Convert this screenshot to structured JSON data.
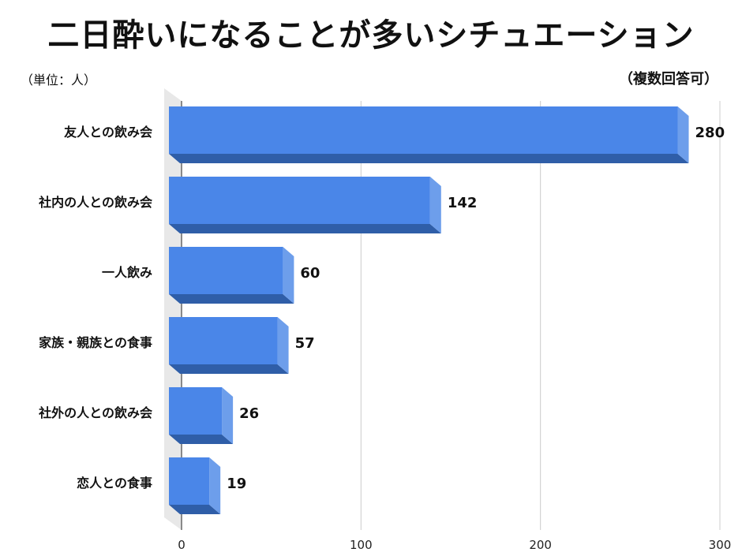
{
  "title": "二日酔いになることが多いシチュエーション",
  "unit_note": "（単位：人）",
  "multi_answer_note": "（複数回答可）",
  "colors": {
    "bar_front": "#4a86e8",
    "bar_side": "#6d9eeb",
    "bar_bottom": "#2f5ea8",
    "wall": "#e8e8e8",
    "grid": "#cccccc"
  },
  "chart_data": {
    "type": "bar",
    "orientation": "horizontal",
    "categories": [
      "友人との飲み会",
      "社内の人との飲み会",
      "一人飲み",
      "家族・親族との食事",
      "社外の人との飲み会",
      "恋人との食事"
    ],
    "values": [
      280,
      142,
      60,
      57,
      26,
      19
    ],
    "xticks": [
      0,
      100,
      200,
      300
    ],
    "xlim": [
      0,
      300
    ],
    "grid": true,
    "style": "3d"
  }
}
